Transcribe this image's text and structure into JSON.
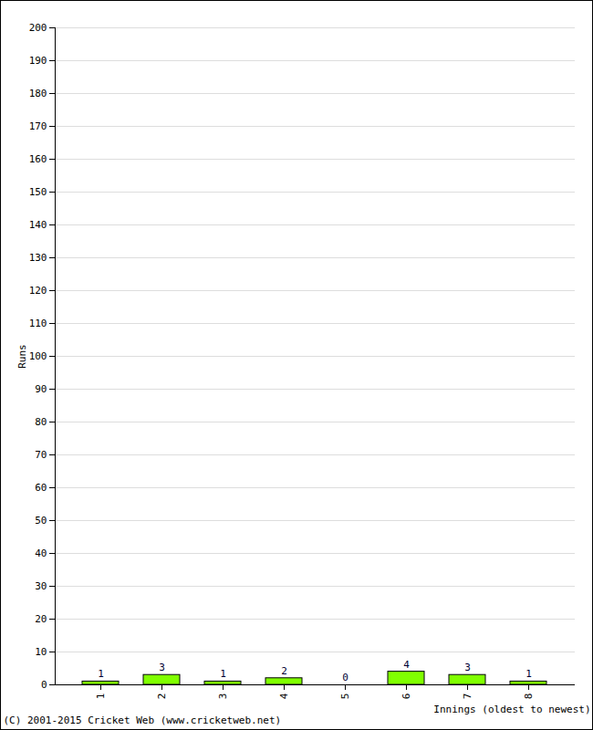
{
  "chart_data": {
    "type": "bar",
    "categories": [
      "1",
      "2",
      "3",
      "4",
      "5",
      "6",
      "7",
      "8"
    ],
    "values": [
      1,
      3,
      1,
      2,
      0,
      4,
      3,
      1
    ],
    "color": "#80ff00",
    "x_label": "Innings (oldest to newest)",
    "y_label": "Runs",
    "ylim": [
      0,
      200
    ],
    "yticks": [
      0,
      10,
      20,
      30,
      40,
      50,
      60,
      70,
      80,
      90,
      100,
      110,
      120,
      130,
      140,
      150,
      160,
      170,
      180,
      190,
      200
    ],
    "grid": true,
    "data_labels": true,
    "caption": "(C) 2001-2015 Cricket Web (www.cricketweb.net)"
  }
}
